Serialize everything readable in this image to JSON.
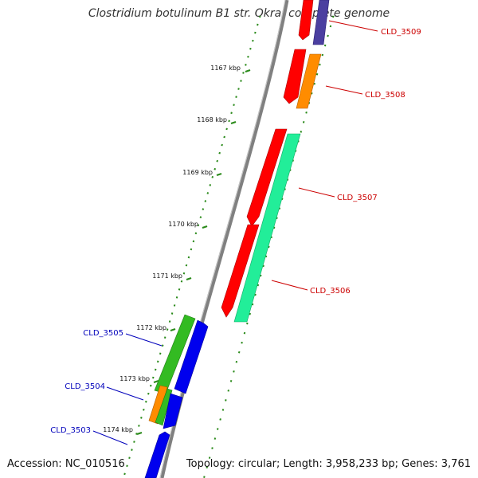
{
  "title": "Clostridium botulinum B1 str. Okra, complete genome",
  "footer": {
    "accession": "Accession: NC_010516",
    "topology": "Topology: circular; Length: 3,958,233 bp; Genes: 3,761"
  },
  "colors": {
    "backbone": "#808080",
    "tick": "#2a8a1a",
    "label_red": "#cc0000",
    "label_blue": "#0000bb",
    "red": "#ff0000",
    "orange": "#ff8c00",
    "green": "#33bb22",
    "seagreen": "#22ee99",
    "blue": "#0000ee",
    "slate": "#4b3fa0"
  },
  "scale_labels": [
    "1167 kbp",
    "1168 kbp",
    "1169 kbp",
    "1170 kbp",
    "1171 kbp",
    "1172 kbp",
    "1173 kbp",
    "1174 kbp"
  ],
  "gene_labels": [
    {
      "name": "CLD_3509",
      "color": "label_red"
    },
    {
      "name": "CLD_3508",
      "color": "label_red"
    },
    {
      "name": "CLD_3507",
      "color": "label_red"
    },
    {
      "name": "CLD_3506",
      "color": "label_red"
    },
    {
      "name": "CLD_3505",
      "color": "label_blue"
    },
    {
      "name": "CLD_3504",
      "color": "label_blue"
    },
    {
      "name": "CLD_3503",
      "color": "label_blue"
    }
  ]
}
